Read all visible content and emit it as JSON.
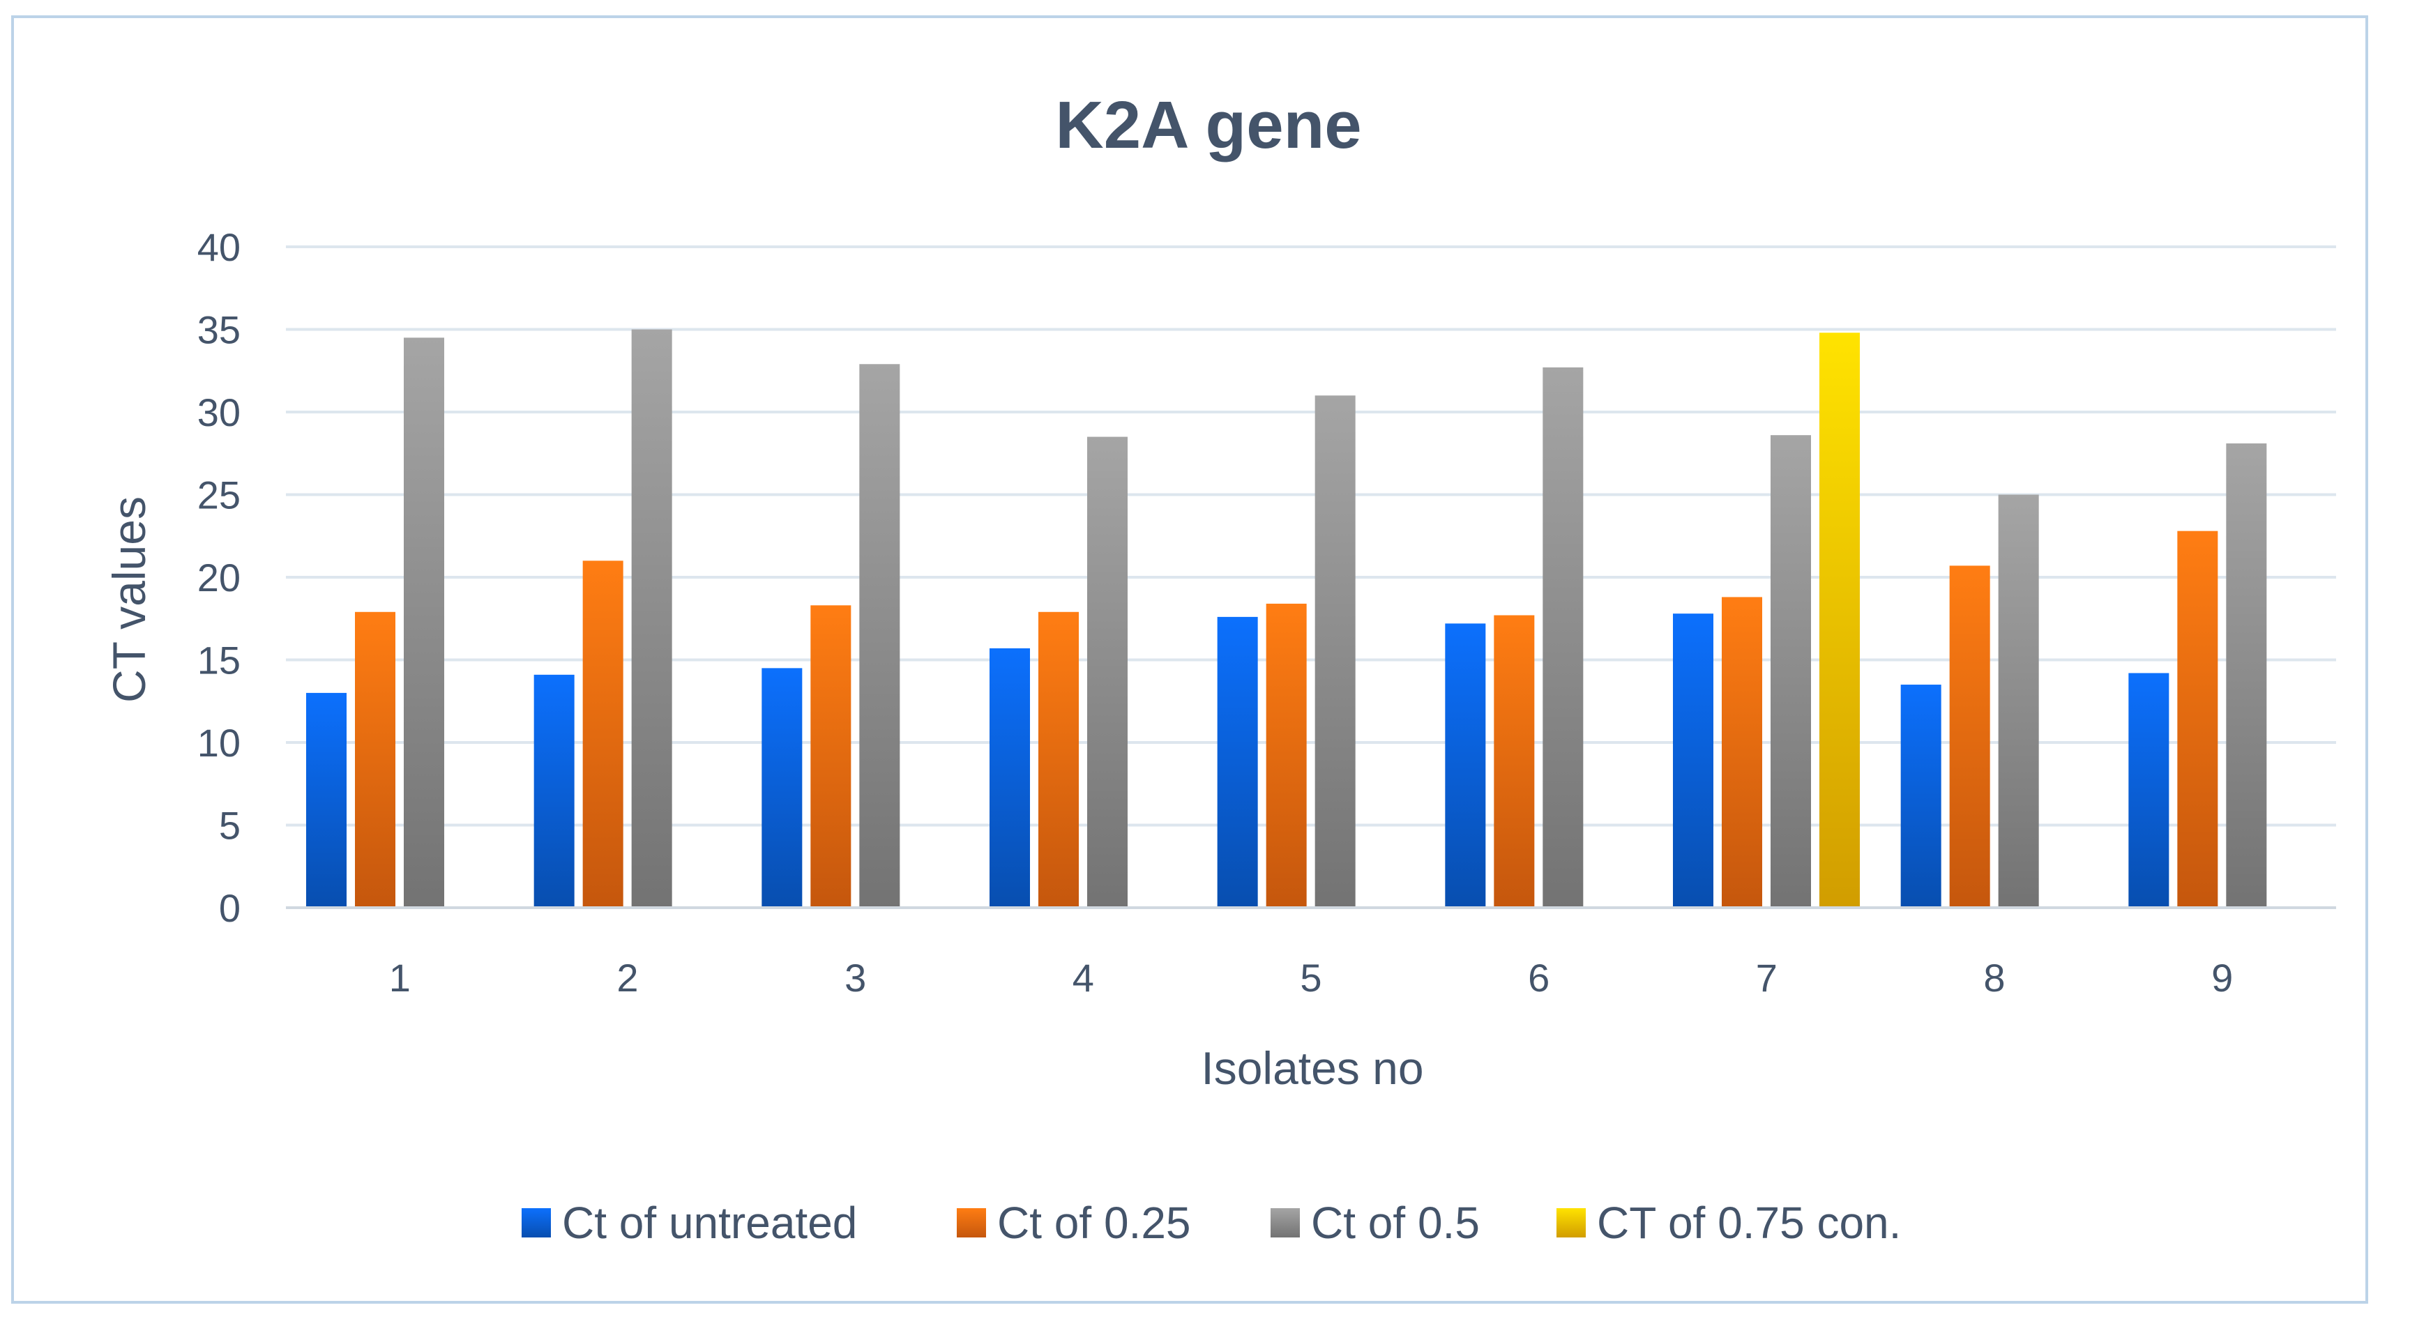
{
  "chart_data": {
    "type": "bar",
    "title": "K2A gene",
    "xlabel": "Isolates no",
    "ylabel": "CT values",
    "ylim": [
      0,
      40
    ],
    "yticks": [
      0,
      5,
      10,
      15,
      20,
      25,
      30,
      35,
      40
    ],
    "grid": true,
    "legend_position": "bottom",
    "categories": [
      "1",
      "2",
      "3",
      "4",
      "5",
      "6",
      "7",
      "8",
      "9"
    ],
    "series": [
      {
        "name": "Ct of untreated",
        "color": "#0a5fd6",
        "values": [
          13.0,
          14.1,
          14.5,
          15.7,
          17.6,
          17.2,
          17.8,
          13.5,
          14.2
        ]
      },
      {
        "name": "Ct of 0.25",
        "color": "#f06a10",
        "values": [
          17.9,
          21.0,
          18.3,
          17.9,
          18.4,
          17.7,
          18.8,
          20.7,
          22.8
        ]
      },
      {
        "name": "Ct of 0.5",
        "color": "#8c8c8c",
        "values": [
          34.5,
          35.0,
          32.9,
          28.5,
          31.0,
          32.7,
          28.6,
          25.0,
          28.1
        ]
      },
      {
        "name": "CT of 0.75 con.",
        "color": "#ffc000",
        "values": [
          null,
          null,
          null,
          null,
          null,
          null,
          34.8,
          null,
          null
        ]
      }
    ]
  }
}
